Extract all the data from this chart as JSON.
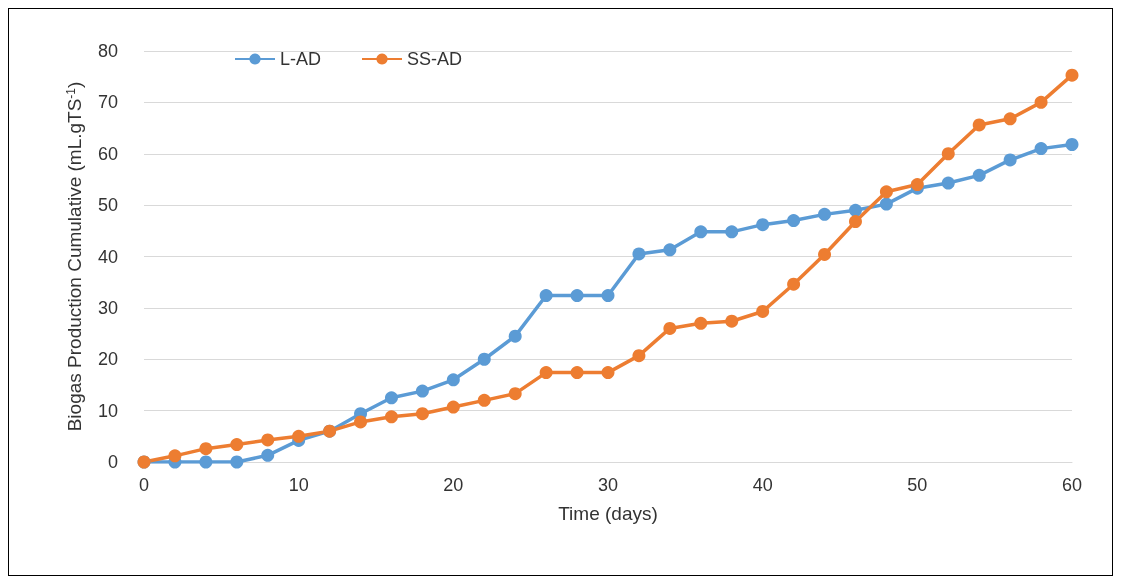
{
  "chart_data": {
    "type": "line",
    "xlabel": "Time (days)",
    "ylabel": "Biogas Production Cumulative (mL.gTS$^{-1}$)",
    "x": [
      0,
      2,
      4,
      6,
      8,
      10,
      12,
      14,
      16,
      18,
      20,
      22,
      24,
      26,
      28,
      30,
      32,
      34,
      36,
      38,
      40,
      42,
      44,
      46,
      48,
      50,
      52,
      54,
      56,
      58,
      60
    ],
    "series": [
      {
        "name": "L-AD",
        "color": "#5b9bd5",
        "values": [
          0,
          0,
          0,
          0,
          1.3,
          4.2,
          6,
          9.4,
          12.5,
          13.8,
          16,
          20,
          24.5,
          32.4,
          32.4,
          32.4,
          40.5,
          41.3,
          44.8,
          44.8,
          46.2,
          47,
          48.2,
          49,
          50.2,
          53.3,
          54.3,
          55.8,
          58.8,
          61,
          61.8
        ]
      },
      {
        "name": "SS-AD",
        "color": "#ed7d31",
        "values": [
          0,
          1.2,
          2.6,
          3.4,
          4.3,
          5,
          6,
          7.8,
          8.8,
          9.4,
          10.7,
          12,
          13.3,
          17.4,
          17.4,
          17.4,
          20.7,
          26,
          27,
          27.4,
          29.3,
          34.6,
          40.4,
          46.8,
          52.6,
          54,
          60,
          65.6,
          66.8,
          70,
          75.3
        ]
      }
    ],
    "xlim": [
      0,
      60
    ],
    "xticks": [
      0,
      10,
      20,
      30,
      40,
      50,
      60
    ],
    "ylim": [
      0,
      80
    ],
    "yticks": [
      0,
      10,
      20,
      30,
      40,
      50,
      60,
      70,
      80
    ],
    "grid": "y",
    "legend": "top left",
    "marker": "circle",
    "line_style": "solid"
  }
}
